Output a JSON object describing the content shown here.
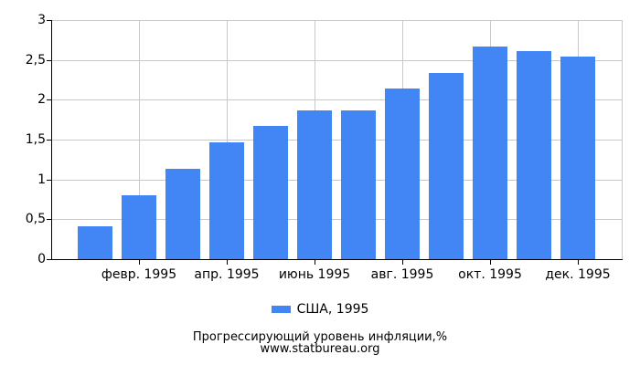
{
  "chart_data": {
    "type": "bar",
    "title": "Прогрессирующий уровень инфляции,%",
    "source": "www.statbureau.org",
    "legend": "США, 1995",
    "bar_color": "#4285f4",
    "values": [
      0.41,
      0.8,
      1.13,
      1.47,
      1.67,
      1.87,
      1.87,
      2.14,
      2.34,
      2.67,
      2.61,
      2.54
    ],
    "n_bars": 12,
    "x_tick_labels": [
      "февр. 1995",
      "апр. 1995",
      "июнь 1995",
      "авг. 1995",
      "окт. 1995",
      "дек. 1995"
    ],
    "x_tick_indices": [
      1,
      3,
      5,
      7,
      9,
      11
    ],
    "y_tick_labels": [
      "0",
      "0,5",
      "1",
      "1,5",
      "2",
      "2,5",
      "3"
    ],
    "y_tick_values": [
      0,
      0.5,
      1,
      1.5,
      2,
      2.5,
      3
    ],
    "ylim": [
      0,
      3
    ],
    "grid": "on",
    "legend_position": "bottom-center"
  }
}
